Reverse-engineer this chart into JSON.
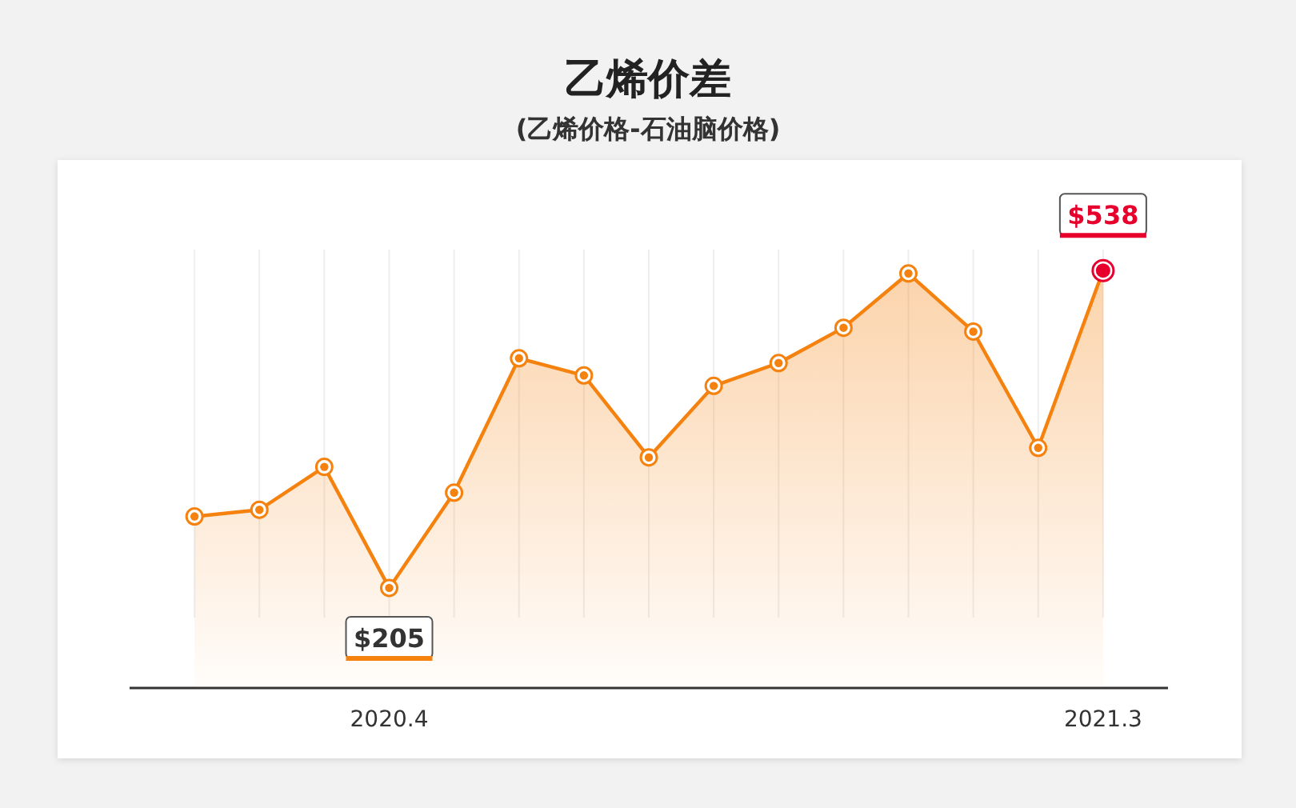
{
  "chart_data": {
    "type": "area",
    "title": "乙烯价差",
    "subtitle": "(乙烯价格-石油脑价格)",
    "categories": [
      null,
      null,
      null,
      "2020.4",
      null,
      null,
      null,
      null,
      null,
      null,
      null,
      null,
      null,
      null,
      "2021.3"
    ],
    "values": [
      280,
      287,
      332,
      205,
      305,
      446,
      428,
      342,
      417,
      441,
      478,
      535,
      474,
      352,
      538
    ],
    "value_labels": [
      null,
      null,
      null,
      "$205",
      null,
      null,
      null,
      null,
      null,
      null,
      null,
      null,
      null,
      null,
      "$538"
    ],
    "color": "#f5820f",
    "colors": [
      "#f5820f",
      "#f5820f",
      "#f5820f",
      "#f5820f",
      "#f5820f",
      "#f5820f",
      "#f5820f",
      "#f5820f",
      "#f5820f",
      "#f5820f",
      "#f5820f",
      "#f5820f",
      "#f5820f",
      "#f5820f",
      "#e8002d"
    ],
    "ylim": [
      100,
      560
    ],
    "grid": "x",
    "marker": "circle"
  }
}
